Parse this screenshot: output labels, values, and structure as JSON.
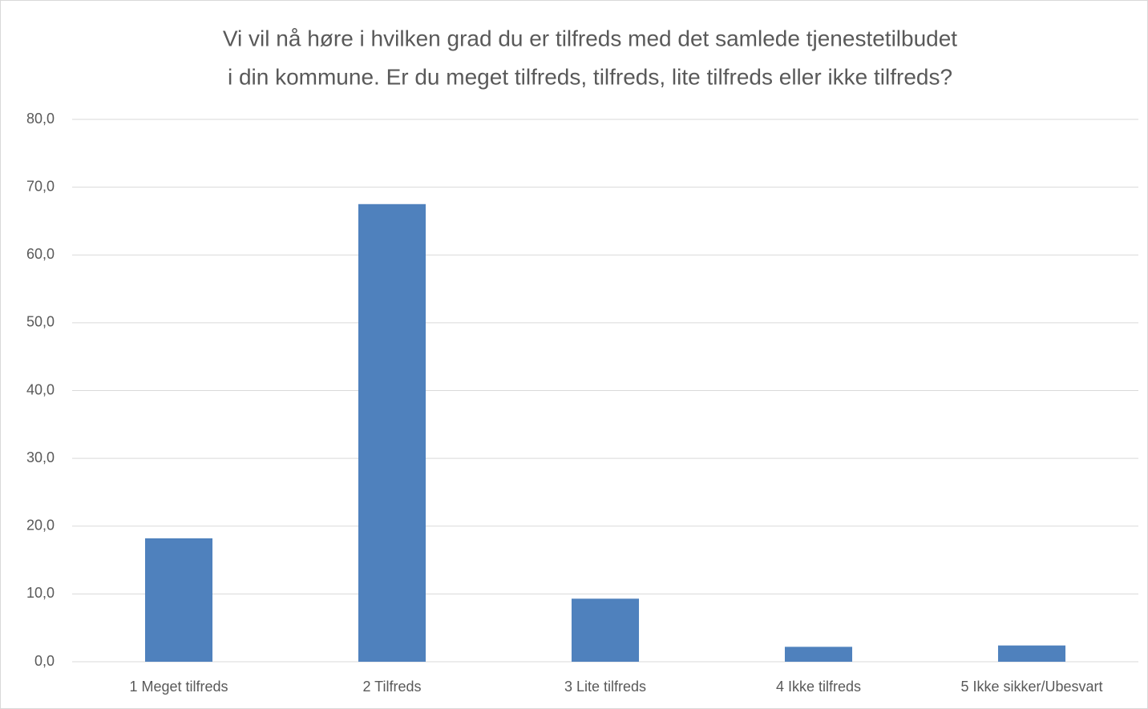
{
  "chart_data": {
    "type": "bar",
    "title": [
      "Vi vil nå høre i hvilken grad du er tilfreds med det samlede tjenestetilbudet",
      "i din kommune. Er du meget tilfreds, tilfreds, lite tilfreds eller ikke tilfreds?"
    ],
    "categories": [
      "1 Meget tilfreds",
      "2 Tilfreds",
      "3 Lite tilfreds",
      "4 Ikke tilfreds",
      "5 Ikke sikker/Ubesvart"
    ],
    "values": [
      18.2,
      67.5,
      9.3,
      2.2,
      2.4
    ],
    "color": "#4f81bd",
    "ylim": [
      0,
      80
    ],
    "yticks": [
      {
        "value": 0,
        "label": "0,0"
      },
      {
        "value": 10,
        "label": "10,0"
      },
      {
        "value": 20,
        "label": "20,0"
      },
      {
        "value": 30,
        "label": "30,0"
      },
      {
        "value": 40,
        "label": "40,0"
      },
      {
        "value": 50,
        "label": "50,0"
      },
      {
        "value": 60,
        "label": "60,0"
      },
      {
        "value": 70,
        "label": "70,0"
      },
      {
        "value": 80,
        "label": "80,0"
      }
    ],
    "grid": true
  }
}
